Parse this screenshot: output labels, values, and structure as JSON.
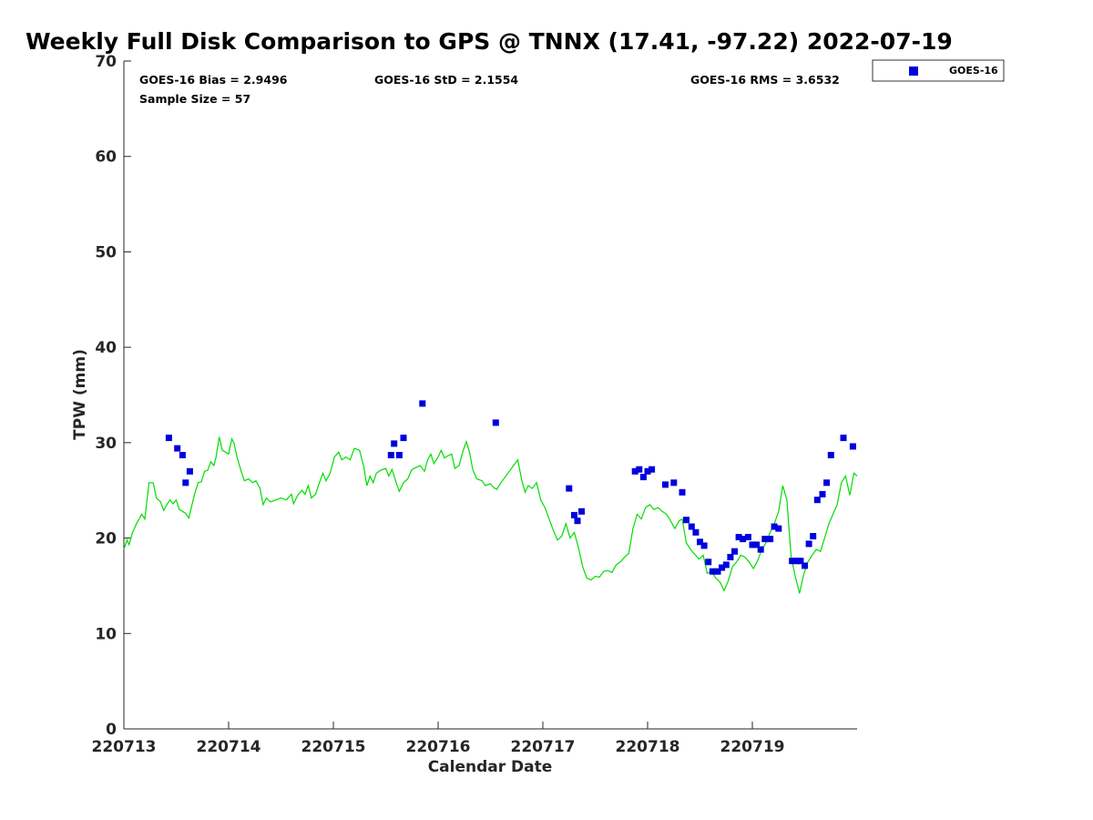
{
  "chart_data": {
    "type": "scatter",
    "title": "Weekly Full Disk Comparison to GPS @ TNNX (17.41, -97.22) 2022-07-19",
    "xlabel": "Calendar Date",
    "ylabel": "TPW (mm)",
    "xlim": [
      0,
      7
    ],
    "ylim": [
      0,
      70
    ],
    "x_ticks": [
      0,
      1,
      2,
      3,
      4,
      5,
      6
    ],
    "x_tick_labels": [
      "220713",
      "220714",
      "220715",
      "220716",
      "220717",
      "220718",
      "220719"
    ],
    "y_ticks": [
      0,
      10,
      20,
      30,
      40,
      50,
      60,
      70
    ],
    "y_tick_labels": [
      "0",
      "10",
      "20",
      "30",
      "40",
      "50",
      "60",
      "70"
    ],
    "x_unit": "days since 220713 00Z",
    "grid": false,
    "legend": "top-right outside plot",
    "stats": {
      "bias": "GOES-16 Bias = 2.9496",
      "std": "GOES-16 StD = 2.1554",
      "rms": "GOES-16 RMS = 3.6532",
      "sample": "Sample Size = 57"
    },
    "series": [
      {
        "name": "GOES-16",
        "kind": "scatter",
        "color": "#0000dd",
        "marker": "square",
        "points": [
          [
            0.43,
            30.5
          ],
          [
            0.51,
            29.4
          ],
          [
            0.56,
            28.7
          ],
          [
            0.59,
            25.8
          ],
          [
            0.63,
            27.0
          ],
          [
            2.55,
            28.7
          ],
          [
            2.58,
            29.9
          ],
          [
            2.63,
            28.7
          ],
          [
            2.67,
            30.5
          ],
          [
            2.85,
            34.1
          ],
          [
            3.55,
            32.1
          ],
          [
            4.25,
            25.2
          ],
          [
            4.3,
            22.4
          ],
          [
            4.33,
            21.8
          ],
          [
            4.37,
            22.8
          ],
          [
            4.88,
            27.0
          ],
          [
            4.92,
            27.2
          ],
          [
            4.96,
            26.4
          ],
          [
            5.0,
            27.0
          ],
          [
            5.04,
            27.2
          ],
          [
            5.17,
            25.6
          ],
          [
            5.25,
            25.8
          ],
          [
            5.33,
            24.8
          ],
          [
            5.37,
            21.9
          ],
          [
            5.42,
            21.2
          ],
          [
            5.46,
            20.6
          ],
          [
            5.5,
            19.6
          ],
          [
            5.54,
            19.2
          ],
          [
            5.58,
            17.5
          ],
          [
            5.62,
            16.5
          ],
          [
            5.67,
            16.5
          ],
          [
            5.71,
            16.9
          ],
          [
            5.75,
            17.2
          ],
          [
            5.79,
            18.0
          ],
          [
            5.83,
            18.6
          ],
          [
            5.87,
            20.1
          ],
          [
            5.91,
            19.9
          ],
          [
            5.96,
            20.1
          ],
          [
            6.0,
            19.3
          ],
          [
            6.04,
            19.3
          ],
          [
            6.08,
            18.8
          ],
          [
            6.12,
            19.9
          ],
          [
            6.17,
            19.9
          ],
          [
            6.21,
            21.2
          ],
          [
            6.25,
            21.0
          ],
          [
            6.38,
            17.6
          ],
          [
            6.42,
            17.6
          ],
          [
            6.46,
            17.6
          ],
          [
            6.5,
            17.1
          ],
          [
            6.54,
            19.4
          ],
          [
            6.58,
            20.2
          ],
          [
            6.62,
            24.0
          ],
          [
            6.67,
            24.6
          ],
          [
            6.71,
            25.8
          ],
          [
            6.75,
            28.7
          ],
          [
            6.87,
            30.5
          ],
          [
            6.96,
            29.6
          ]
        ]
      },
      {
        "name": "",
        "kind": "line",
        "color": "#00dd00",
        "points": [
          [
            0.0,
            18.8
          ],
          [
            0.03,
            19.8
          ],
          [
            0.05,
            19.3
          ],
          [
            0.08,
            20.5
          ],
          [
            0.12,
            21.5
          ],
          [
            0.17,
            22.5
          ],
          [
            0.2,
            22.0
          ],
          [
            0.24,
            25.8
          ],
          [
            0.28,
            25.8
          ],
          [
            0.31,
            24.2
          ],
          [
            0.35,
            23.8
          ],
          [
            0.38,
            22.9
          ],
          [
            0.41,
            23.5
          ],
          [
            0.44,
            24.0
          ],
          [
            0.47,
            23.6
          ],
          [
            0.5,
            24.0
          ],
          [
            0.53,
            23.0
          ],
          [
            0.56,
            22.8
          ],
          [
            0.59,
            22.6
          ],
          [
            0.62,
            22.1
          ],
          [
            0.65,
            23.5
          ],
          [
            0.68,
            24.8
          ],
          [
            0.71,
            25.8
          ],
          [
            0.74,
            25.9
          ],
          [
            0.77,
            27.0
          ],
          [
            0.8,
            27.1
          ],
          [
            0.83,
            28.0
          ],
          [
            0.86,
            27.6
          ],
          [
            0.88,
            28.5
          ],
          [
            0.91,
            30.6
          ],
          [
            0.94,
            29.2
          ],
          [
            0.97,
            29.0
          ],
          [
            1.0,
            28.8
          ],
          [
            1.03,
            30.4
          ],
          [
            1.05,
            30.0
          ],
          [
            1.08,
            28.5
          ],
          [
            1.12,
            27.0
          ],
          [
            1.15,
            26.0
          ],
          [
            1.19,
            26.2
          ],
          [
            1.23,
            25.8
          ],
          [
            1.26,
            26.0
          ],
          [
            1.3,
            25.2
          ],
          [
            1.33,
            23.5
          ],
          [
            1.36,
            24.2
          ],
          [
            1.4,
            23.8
          ],
          [
            1.45,
            24.0
          ],
          [
            1.5,
            24.2
          ],
          [
            1.55,
            24.0
          ],
          [
            1.6,
            24.6
          ],
          [
            1.62,
            23.6
          ],
          [
            1.66,
            24.5
          ],
          [
            1.7,
            25.0
          ],
          [
            1.73,
            24.6
          ],
          [
            1.76,
            25.5
          ],
          [
            1.79,
            24.2
          ],
          [
            1.83,
            24.6
          ],
          [
            1.86,
            25.6
          ],
          [
            1.9,
            26.8
          ],
          [
            1.93,
            26.0
          ],
          [
            1.97,
            26.8
          ],
          [
            2.01,
            28.5
          ],
          [
            2.05,
            29.0
          ],
          [
            2.08,
            28.2
          ],
          [
            2.12,
            28.5
          ],
          [
            2.16,
            28.2
          ],
          [
            2.2,
            29.4
          ],
          [
            2.25,
            29.2
          ],
          [
            2.29,
            27.5
          ],
          [
            2.32,
            25.5
          ],
          [
            2.35,
            26.5
          ],
          [
            2.38,
            25.8
          ],
          [
            2.41,
            26.8
          ],
          [
            2.45,
            27.1
          ],
          [
            2.5,
            27.3
          ],
          [
            2.53,
            26.5
          ],
          [
            2.56,
            27.2
          ],
          [
            2.6,
            25.8
          ],
          [
            2.63,
            24.9
          ],
          [
            2.67,
            25.8
          ],
          [
            2.71,
            26.2
          ],
          [
            2.75,
            27.2
          ],
          [
            2.79,
            27.4
          ],
          [
            2.83,
            27.6
          ],
          [
            2.87,
            27.0
          ],
          [
            2.9,
            28.2
          ],
          [
            2.93,
            28.8
          ],
          [
            2.96,
            27.8
          ],
          [
            3.0,
            28.5
          ],
          [
            3.03,
            29.2
          ],
          [
            3.06,
            28.4
          ],
          [
            3.09,
            28.6
          ],
          [
            3.13,
            28.8
          ],
          [
            3.16,
            27.3
          ],
          [
            3.2,
            27.6
          ],
          [
            3.24,
            29.2
          ],
          [
            3.27,
            30.1
          ],
          [
            3.3,
            29.0
          ],
          [
            3.33,
            27.2
          ],
          [
            3.37,
            26.2
          ],
          [
            3.42,
            26.0
          ],
          [
            3.45,
            25.5
          ],
          [
            3.5,
            25.7
          ],
          [
            3.53,
            25.3
          ],
          [
            3.56,
            25.1
          ],
          [
            3.6,
            25.8
          ],
          [
            3.68,
            27.0
          ],
          [
            3.76,
            28.2
          ],
          [
            3.8,
            26.0
          ],
          [
            3.83,
            24.8
          ],
          [
            3.86,
            25.5
          ],
          [
            3.9,
            25.2
          ],
          [
            3.94,
            25.8
          ],
          [
            3.98,
            24.0
          ],
          [
            4.02,
            23.2
          ],
          [
            4.06,
            22.0
          ],
          [
            4.1,
            20.8
          ],
          [
            4.14,
            19.8
          ],
          [
            4.18,
            20.2
          ],
          [
            4.22,
            21.5
          ],
          [
            4.26,
            20.0
          ],
          [
            4.3,
            20.6
          ],
          [
            4.34,
            19.0
          ],
          [
            4.38,
            17.0
          ],
          [
            4.42,
            15.8
          ],
          [
            4.46,
            15.6
          ],
          [
            4.5,
            16.0
          ],
          [
            4.54,
            15.9
          ],
          [
            4.58,
            16.5
          ],
          [
            4.62,
            16.6
          ],
          [
            4.66,
            16.4
          ],
          [
            4.7,
            17.2
          ],
          [
            4.74,
            17.5
          ],
          [
            4.78,
            18.0
          ],
          [
            4.82,
            18.4
          ],
          [
            4.86,
            21.0
          ],
          [
            4.9,
            22.5
          ],
          [
            4.94,
            22.0
          ],
          [
            4.98,
            23.2
          ],
          [
            5.02,
            23.5
          ],
          [
            5.06,
            23.0
          ],
          [
            5.1,
            23.2
          ],
          [
            5.14,
            22.8
          ],
          [
            5.18,
            22.5
          ],
          [
            5.22,
            21.8
          ],
          [
            5.26,
            21.0
          ],
          [
            5.3,
            21.8
          ],
          [
            5.33,
            22.0
          ],
          [
            5.37,
            19.5
          ],
          [
            5.41,
            18.8
          ],
          [
            5.45,
            18.3
          ],
          [
            5.49,
            17.8
          ],
          [
            5.53,
            18.2
          ],
          [
            5.57,
            16.3
          ],
          [
            5.61,
            16.5
          ],
          [
            5.65,
            15.8
          ],
          [
            5.69,
            15.4
          ],
          [
            5.73,
            14.5
          ],
          [
            5.77,
            15.5
          ],
          [
            5.81,
            17.0
          ],
          [
            5.85,
            17.5
          ],
          [
            5.89,
            18.2
          ],
          [
            5.93,
            18.0
          ],
          [
            5.97,
            17.5
          ],
          [
            6.01,
            16.8
          ],
          [
            6.05,
            17.6
          ],
          [
            6.09,
            18.8
          ],
          [
            6.13,
            19.5
          ],
          [
            6.17,
            20.6
          ],
          [
            6.21,
            21.5
          ],
          [
            6.25,
            22.8
          ],
          [
            6.29,
            25.5
          ],
          [
            6.33,
            24.0
          ],
          [
            6.37,
            18.0
          ],
          [
            6.41,
            16.0
          ],
          [
            6.45,
            14.2
          ],
          [
            6.49,
            16.2
          ],
          [
            6.53,
            17.5
          ],
          [
            6.57,
            18.2
          ],
          [
            6.61,
            18.8
          ],
          [
            6.65,
            18.6
          ],
          [
            6.69,
            20.0
          ],
          [
            6.73,
            21.5
          ],
          [
            6.77,
            22.5
          ],
          [
            6.81,
            23.5
          ],
          [
            6.85,
            25.8
          ],
          [
            6.89,
            26.5
          ],
          [
            6.93,
            24.5
          ],
          [
            6.97,
            26.8
          ],
          [
            7.0,
            26.5
          ]
        ]
      }
    ]
  }
}
